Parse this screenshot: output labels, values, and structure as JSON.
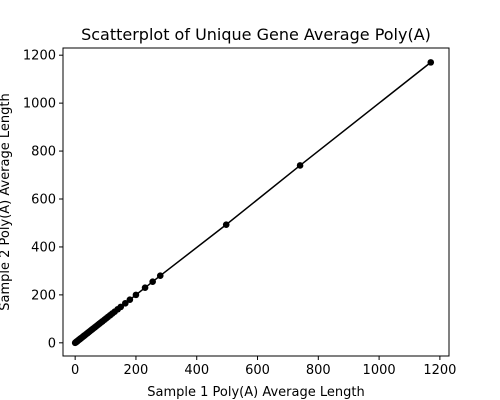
{
  "chart_data": {
    "type": "scatter",
    "title": "Scatterplot of Unique Gene Average Poly(A)",
    "xlabel": "Sample 1 Poly(A) Average Length",
    "ylabel": "Sample 2 Poly(A) Average Length",
    "xlim": [
      -40,
      1230
    ],
    "ylim": [
      -55,
      1230
    ],
    "xticks": [
      0,
      200,
      400,
      600,
      800,
      1000,
      1200
    ],
    "yticks": [
      0,
      200,
      400,
      600,
      800,
      1000,
      1200
    ],
    "grid": false,
    "legend": "none",
    "colors": {
      "marker": "#000000",
      "line": "#000000",
      "axes": "#000000",
      "background": "#ffffff"
    },
    "series": [
      {
        "style": "line-with-markers",
        "x": [
          0,
          2,
          4,
          5,
          6,
          8,
          10,
          12,
          14,
          16,
          18,
          20,
          22,
          25,
          28,
          30,
          33,
          36,
          40,
          44,
          48,
          52,
          56,
          60,
          65,
          70,
          75,
          80,
          85,
          90,
          96,
          102,
          108,
          115,
          122,
          130,
          140,
          150,
          165,
          180,
          200,
          230,
          255,
          280,
          497,
          740,
          1170
        ],
        "y": [
          0,
          2,
          4,
          5,
          6,
          8,
          10,
          12,
          14,
          16,
          18,
          20,
          22,
          25,
          28,
          30,
          33,
          36,
          40,
          44,
          48,
          52,
          56,
          60,
          65,
          70,
          75,
          80,
          85,
          90,
          96,
          102,
          108,
          115,
          122,
          130,
          140,
          150,
          165,
          180,
          200,
          230,
          255,
          280,
          493,
          740,
          1170
        ]
      }
    ]
  }
}
